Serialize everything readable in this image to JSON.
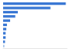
{
  "chart_data": {
    "type": "bar",
    "orientation": "horizontal",
    "categories": [
      null,
      null,
      null,
      null,
      null,
      null,
      null,
      null,
      null,
      null,
      null
    ],
    "values": [
      98,
      74,
      23,
      19,
      11,
      6,
      5,
      4,
      4,
      3,
      2
    ],
    "colors": [
      "#3a78d4",
      "#3a78d4",
      "#3a78d4",
      "#3a78d4",
      "#3a78d4",
      "#3a78d4",
      "#3a78d4",
      "#3a78d4",
      "#3a78d4",
      "#3a78d4",
      "#a9c4e8"
    ],
    "xlim": [
      0,
      100
    ],
    "grid": false,
    "tick_labels": false
  }
}
